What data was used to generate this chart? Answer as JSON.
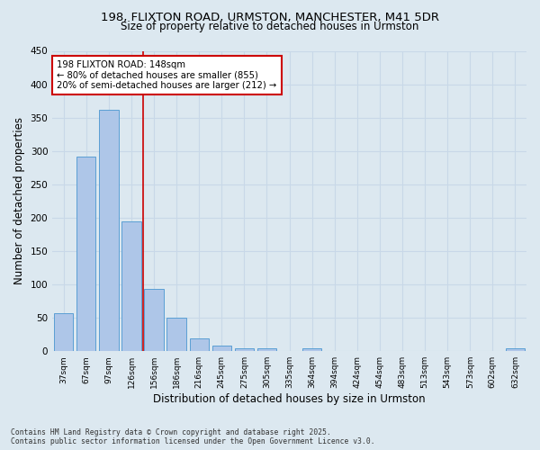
{
  "title_line1": "198, FLIXTON ROAD, URMSTON, MANCHESTER, M41 5DR",
  "title_line2": "Size of property relative to detached houses in Urmston",
  "xlabel": "Distribution of detached houses by size in Urmston",
  "ylabel": "Number of detached properties",
  "footer": "Contains HM Land Registry data © Crown copyright and database right 2025.\nContains public sector information licensed under the Open Government Licence v3.0.",
  "categories": [
    "37sqm",
    "67sqm",
    "97sqm",
    "126sqm",
    "156sqm",
    "186sqm",
    "216sqm",
    "245sqm",
    "275sqm",
    "305sqm",
    "335sqm",
    "364sqm",
    "394sqm",
    "424sqm",
    "454sqm",
    "483sqm",
    "513sqm",
    "543sqm",
    "573sqm",
    "602sqm",
    "632sqm"
  ],
  "values": [
    57,
    291,
    362,
    194,
    93,
    50,
    19,
    8,
    4,
    5,
    0,
    4,
    0,
    0,
    0,
    0,
    0,
    0,
    0,
    0,
    4
  ],
  "bar_color": "#aec6e8",
  "bar_edge_color": "#5a9fd4",
  "red_line_x": 3.5,
  "annotation_text": "198 FLIXTON ROAD: 148sqm\n← 80% of detached houses are smaller (855)\n20% of semi-detached houses are larger (212) →",
  "annotation_box_color": "#ffffff",
  "annotation_box_edge": "#cc0000",
  "property_line_color": "#cc0000",
  "grid_color": "#c8d8e8",
  "background_color": "#dce8f0",
  "ylim": [
    0,
    450
  ],
  "yticks": [
    0,
    50,
    100,
    150,
    200,
    250,
    300,
    350,
    400,
    450
  ]
}
